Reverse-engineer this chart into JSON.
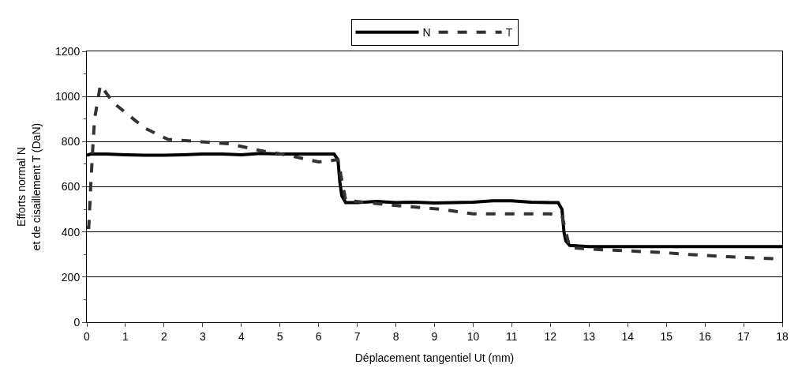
{
  "chart_data": {
    "type": "line",
    "xlabel": "Déplacement tangentiel Ut (mm)",
    "ylabel": "Efforts normal N\net de cisaillement T (DaN)",
    "xlim": [
      0,
      18
    ],
    "xticks": [
      0,
      1,
      2,
      3,
      4,
      5,
      6,
      7,
      8,
      9,
      10,
      11,
      12,
      13,
      14,
      15,
      16,
      17,
      18
    ],
    "ylim": [
      0,
      1200
    ],
    "yticks": [
      0,
      200,
      400,
      600,
      800,
      1000,
      1200
    ],
    "grid": "y",
    "legend": "top",
    "series": [
      {
        "name": "N",
        "color": "#000000",
        "line_style": "solid",
        "x": [
          0,
          0.1,
          0.5,
          1,
          1.5,
          2,
          2.5,
          3,
          3.5,
          4,
          4.5,
          5,
          5.5,
          6,
          6.4,
          6.5,
          6.55,
          6.6,
          6.7,
          7,
          7.5,
          8,
          8.5,
          9,
          9.5,
          10,
          10.5,
          11,
          11.5,
          12,
          12.2,
          12.3,
          12.35,
          12.4,
          12.5,
          13,
          14,
          15,
          16,
          17,
          18
        ],
        "values": [
          740,
          745,
          745,
          742,
          740,
          740,
          742,
          745,
          745,
          742,
          748,
          745,
          745,
          745,
          745,
          720,
          620,
          560,
          530,
          530,
          535,
          530,
          532,
          528,
          530,
          532,
          538,
          538,
          532,
          530,
          530,
          500,
          400,
          360,
          340,
          335,
          335,
          335,
          335,
          335,
          335
        ]
      },
      {
        "name": "T",
        "color": "#333333",
        "line_style": "dashed",
        "x": [
          0,
          0.05,
          0.1,
          0.15,
          0.2,
          0.35,
          0.7,
          1.5,
          2.1,
          2.9,
          3.7,
          4.5,
          5.2,
          6,
          6.5,
          6.7,
          7.8,
          9.2,
          10,
          11,
          12,
          12.3,
          12.5,
          13.5,
          14.8,
          15.6,
          16.6,
          17.3,
          18
        ],
        "values": [
          420,
          420,
          600,
          760,
          900,
          1050,
          970,
          860,
          810,
          800,
          790,
          760,
          740,
          710,
          720,
          540,
          520,
          500,
          480,
          480,
          480,
          470,
          330,
          320,
          310,
          300,
          290,
          285,
          280
        ]
      }
    ]
  }
}
